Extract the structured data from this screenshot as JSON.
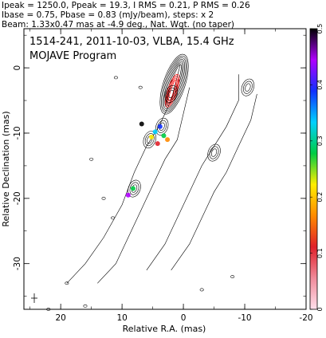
{
  "header": {
    "line1": "Ipeak = 1250.0, Ppeak = 19.3, I RMS = 0.21, P RMS = 0.26",
    "line2": "Ibase = 0.75, Pbase = 0.83 (mJy/beam), steps: x 2",
    "line3": "Beam: 1.33x0.47 mas at -4.9 deg., Nat. Wgt. (no taper)"
  },
  "chart_data": {
    "type": "contour",
    "title": "1514-241, 2011-10-03, VLBA, 15.4 GHz",
    "subtitle": "MOJAVE Program",
    "xlabel": "Relative R.A. (mas)",
    "ylabel": "Relative Declination (mas)",
    "xlim": [
      26,
      -20
    ],
    "ylim": [
      -37,
      6
    ],
    "x_ticks": [
      20,
      10,
      0,
      -10,
      -20
    ],
    "y_ticks": [
      0,
      -10,
      -20,
      -30
    ],
    "colorbar": {
      "range": [
        0,
        0.5
      ],
      "ticks": [
        0,
        0.1,
        0.2,
        0.3,
        0.4,
        0.5
      ],
      "colors": [
        "#ffe0ec",
        "#f08a9a",
        "#e0202a",
        "#ff8a00",
        "#ffee00",
        "#00cc44",
        "#00d0ff",
        "#1030ff",
        "#b000ff",
        "#000000"
      ]
    },
    "contour_colors": {
      "total_intensity": "#000000",
      "polarization": "#ff0000"
    },
    "components": [
      {
        "x": 0.5,
        "y": 0.5,
        "peak": true
      },
      {
        "x": 2.0,
        "y": -4.0
      },
      {
        "x": 3.5,
        "y": -9.0
      },
      {
        "x": 5.5,
        "y": -11.0
      },
      {
        "x": 8.0,
        "y": -18.5
      },
      {
        "x": -10.5,
        "y": -3.0
      },
      {
        "x": -5.0,
        "y": -13.0
      }
    ]
  }
}
